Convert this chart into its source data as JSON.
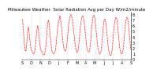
{
  "title": "Milwaukee Weather  Solar Radiation Avg per Day W/m2/minute",
  "line_color": "red",
  "background_color": "#ffffff",
  "x_labels": [
    "S",
    "O",
    "N",
    "D",
    "J",
    "F",
    "M",
    "A",
    "M",
    "J",
    "J",
    "A",
    "S"
  ],
  "y_ticks": [
    0,
    1,
    2,
    3,
    4,
    5,
    6,
    7,
    8
  ],
  "ylim": [
    0,
    8.5
  ],
  "values": [
    7.2,
    6.8,
    6.2,
    5.5,
    4.8,
    4.0,
    3.2,
    2.5,
    2.0,
    1.8,
    1.6,
    1.5,
    1.6,
    1.8,
    2.2,
    2.8,
    3.5,
    4.2,
    4.8,
    5.2,
    5.5,
    5.8,
    5.5,
    5.0,
    4.5,
    4.0,
    3.5,
    3.0,
    2.5,
    2.2,
    2.0,
    1.8,
    1.6,
    1.5,
    1.4,
    1.3,
    1.2,
    1.1,
    1.0,
    1.0,
    1.1,
    1.2,
    1.3,
    1.5,
    1.8,
    2.2,
    2.8,
    3.5,
    4.2,
    4.8,
    5.2,
    5.5,
    5.8,
    6.0,
    5.8,
    5.5,
    5.0,
    4.5,
    4.0,
    3.5,
    3.0,
    2.5,
    2.2,
    2.0,
    1.8,
    1.6,
    1.5,
    1.4,
    1.3,
    1.2,
    1.1,
    1.0,
    0.9,
    0.8,
    0.8,
    0.8,
    0.9,
    1.0,
    1.2,
    1.5,
    1.8,
    2.2,
    2.8,
    3.5,
    4.2,
    4.8,
    5.5,
    6.0,
    6.5,
    6.8,
    7.0,
    6.8,
    6.5,
    6.0,
    5.5,
    5.0,
    4.5,
    4.0,
    3.5,
    3.0,
    2.5,
    2.0,
    1.8,
    1.5,
    1.4,
    1.3,
    1.2,
    1.1,
    1.0,
    1.0,
    1.0,
    1.1,
    1.2,
    1.4,
    1.6,
    1.9,
    2.3,
    2.8,
    3.4,
    4.0,
    4.6,
    5.2,
    5.7,
    6.1,
    6.4,
    6.6,
    6.8,
    7.0,
    7.2,
    7.5,
    7.8,
    7.5,
    7.2,
    6.8,
    6.4,
    6.0,
    5.5,
    5.0,
    4.5,
    4.0,
    3.5,
    3.0,
    2.5,
    2.2,
    2.0,
    1.8,
    1.7,
    1.6,
    1.5,
    1.5,
    1.6,
    1.7,
    1.9,
    2.2,
    2.6,
    3.1,
    3.7,
    4.3,
    4.9,
    5.5,
    6.0,
    6.4,
    6.8,
    7.1,
    7.4,
    7.6,
    7.8,
    7.9,
    8.0,
    7.9,
    7.8,
    7.6,
    7.4,
    7.1,
    6.8,
    6.4,
    6.0,
    5.5,
    5.0,
    4.5,
    4.0,
    3.5,
    3.0,
    2.6,
    2.2,
    1.9,
    1.7,
    1.5,
    1.4,
    1.3,
    1.3,
    1.4,
    1.5,
    1.7,
    2.0,
    2.4,
    2.9,
    3.5,
    4.1,
    4.7,
    5.3,
    5.8,
    6.3,
    6.7,
    7.0,
    7.3,
    7.5,
    7.7,
    7.8,
    7.8,
    7.7,
    7.5,
    7.3,
    7.0,
    6.6,
    6.2,
    5.7,
    5.2,
    4.7,
    4.1,
    3.6,
    3.1,
    2.7,
    2.3,
    2.0,
    1.8,
    1.6,
    1.5,
    1.4,
    1.3,
    1.3,
    1.4,
    1.5,
    1.7,
    2.0,
    2.4,
    2.9,
    3.5,
    4.2,
    4.9,
    5.5,
    6.1,
    6.6,
    7.0,
    7.4,
    7.6,
    7.8,
    7.9,
    7.9,
    7.8,
    7.6,
    7.3,
    6.9,
    6.5,
    6.0,
    5.5,
    5.0,
    4.4,
    3.9,
    3.3,
    2.8,
    2.4,
    2.0,
    1.7,
    1.5,
    1.3,
    1.2,
    1.1,
    1.0,
    1.0,
    1.1,
    1.2,
    1.4,
    1.7,
    2.1,
    2.6,
    3.2,
    3.8,
    4.5,
    5.1,
    5.7,
    6.2,
    6.6,
    6.9,
    7.1,
    7.2,
    7.2,
    7.1,
    6.9,
    6.6,
    6.2,
    5.7,
    5.2,
    4.6,
    4.0,
    3.5,
    2.9,
    2.4,
    2.0,
    1.7,
    1.4,
    1.2,
    1.0,
    0.9,
    0.8,
    0.7,
    0.7,
    0.8,
    0.9,
    1.1,
    1.4,
    1.8,
    2.3,
    2.9,
    3.5,
    4.2,
    4.8,
    5.4,
    5.9,
    6.3,
    6.7,
    7.0,
    7.2,
    7.4,
    7.5,
    7.5,
    7.4,
    7.2,
    6.9,
    6.5,
    6.0,
    5.5,
    4.9,
    4.3,
    3.7,
    3.2,
    2.7,
    2.2,
    1.9,
    1.6,
    1.4,
    1.2,
    1.1,
    1.0,
    1.0,
    1.0,
    1.1,
    1.3,
    1.5,
    1.8,
    2.2,
    2.7,
    3.3,
    4.0,
    4.6,
    5.2,
    5.8,
    6.3,
    6.7,
    7.0,
    7.2,
    7.4,
    7.5,
    7.5,
    7.4,
    7.2,
    6.9,
    6.5,
    6.0,
    5.5,
    4.9,
    4.3,
    3.7,
    3.1,
    2.6,
    2.2,
    1.8
  ],
  "num_xticks": 13,
  "grid_color": "#888888",
  "tick_fontsize": 3.5,
  "title_fontsize": 4.0
}
